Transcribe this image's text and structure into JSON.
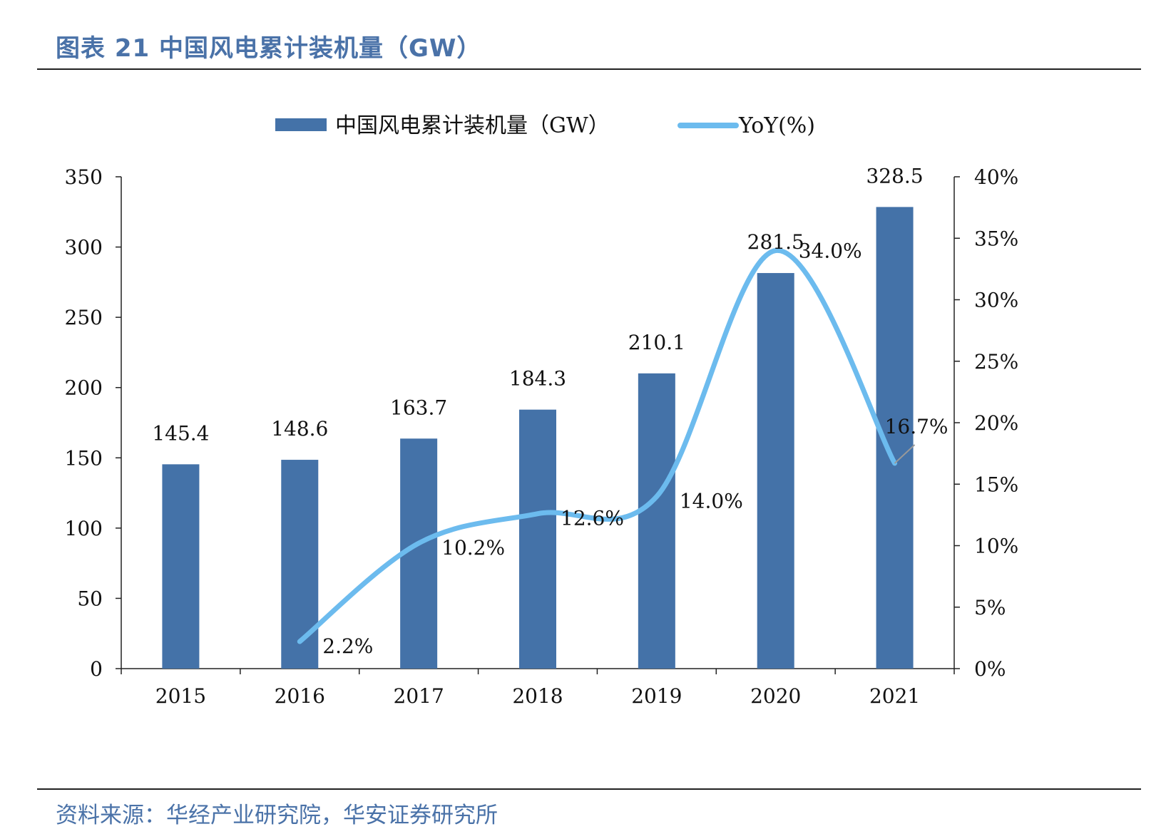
{
  "page": {
    "title": "图表 21 中国风电累计装机量（GW）",
    "source": "资料来源：华经产业研究院，华安证券研究所"
  },
  "chart_data": {
    "type": "bar",
    "categories": [
      "2015",
      "2016",
      "2017",
      "2018",
      "2019",
      "2020",
      "2021"
    ],
    "series": [
      {
        "name": "中国风电累计装机量（GW）",
        "type": "bar",
        "axis": "left",
        "color": "#4472a8",
        "values": [
          145.4,
          148.6,
          163.7,
          184.3,
          210.1,
          281.5,
          328.5
        ],
        "labels": [
          "145.4",
          "148.6",
          "163.7",
          "184.3",
          "210.1",
          "281.5",
          "328.5"
        ]
      },
      {
        "name": "YoY(%)",
        "type": "line",
        "axis": "right",
        "color": "#6cbbee",
        "values": [
          null,
          2.2,
          10.2,
          12.6,
          14.0,
          34.0,
          16.7
        ],
        "labels": [
          "",
          "2.2%",
          "10.2%",
          "12.6%",
          "14.0%",
          "34.0%",
          "16.7%"
        ]
      }
    ],
    "y_left": {
      "ylim": [
        0,
        350
      ],
      "ticks": [
        "0",
        "50",
        "100",
        "150",
        "200",
        "250",
        "300",
        "350"
      ]
    },
    "y_right": {
      "ylim": [
        0,
        40
      ],
      "ticks": [
        "0%",
        "5%",
        "10%",
        "15%",
        "20%",
        "25%",
        "30%",
        "35%",
        "40%"
      ]
    },
    "legend_position": "top-center",
    "grid": false
  }
}
